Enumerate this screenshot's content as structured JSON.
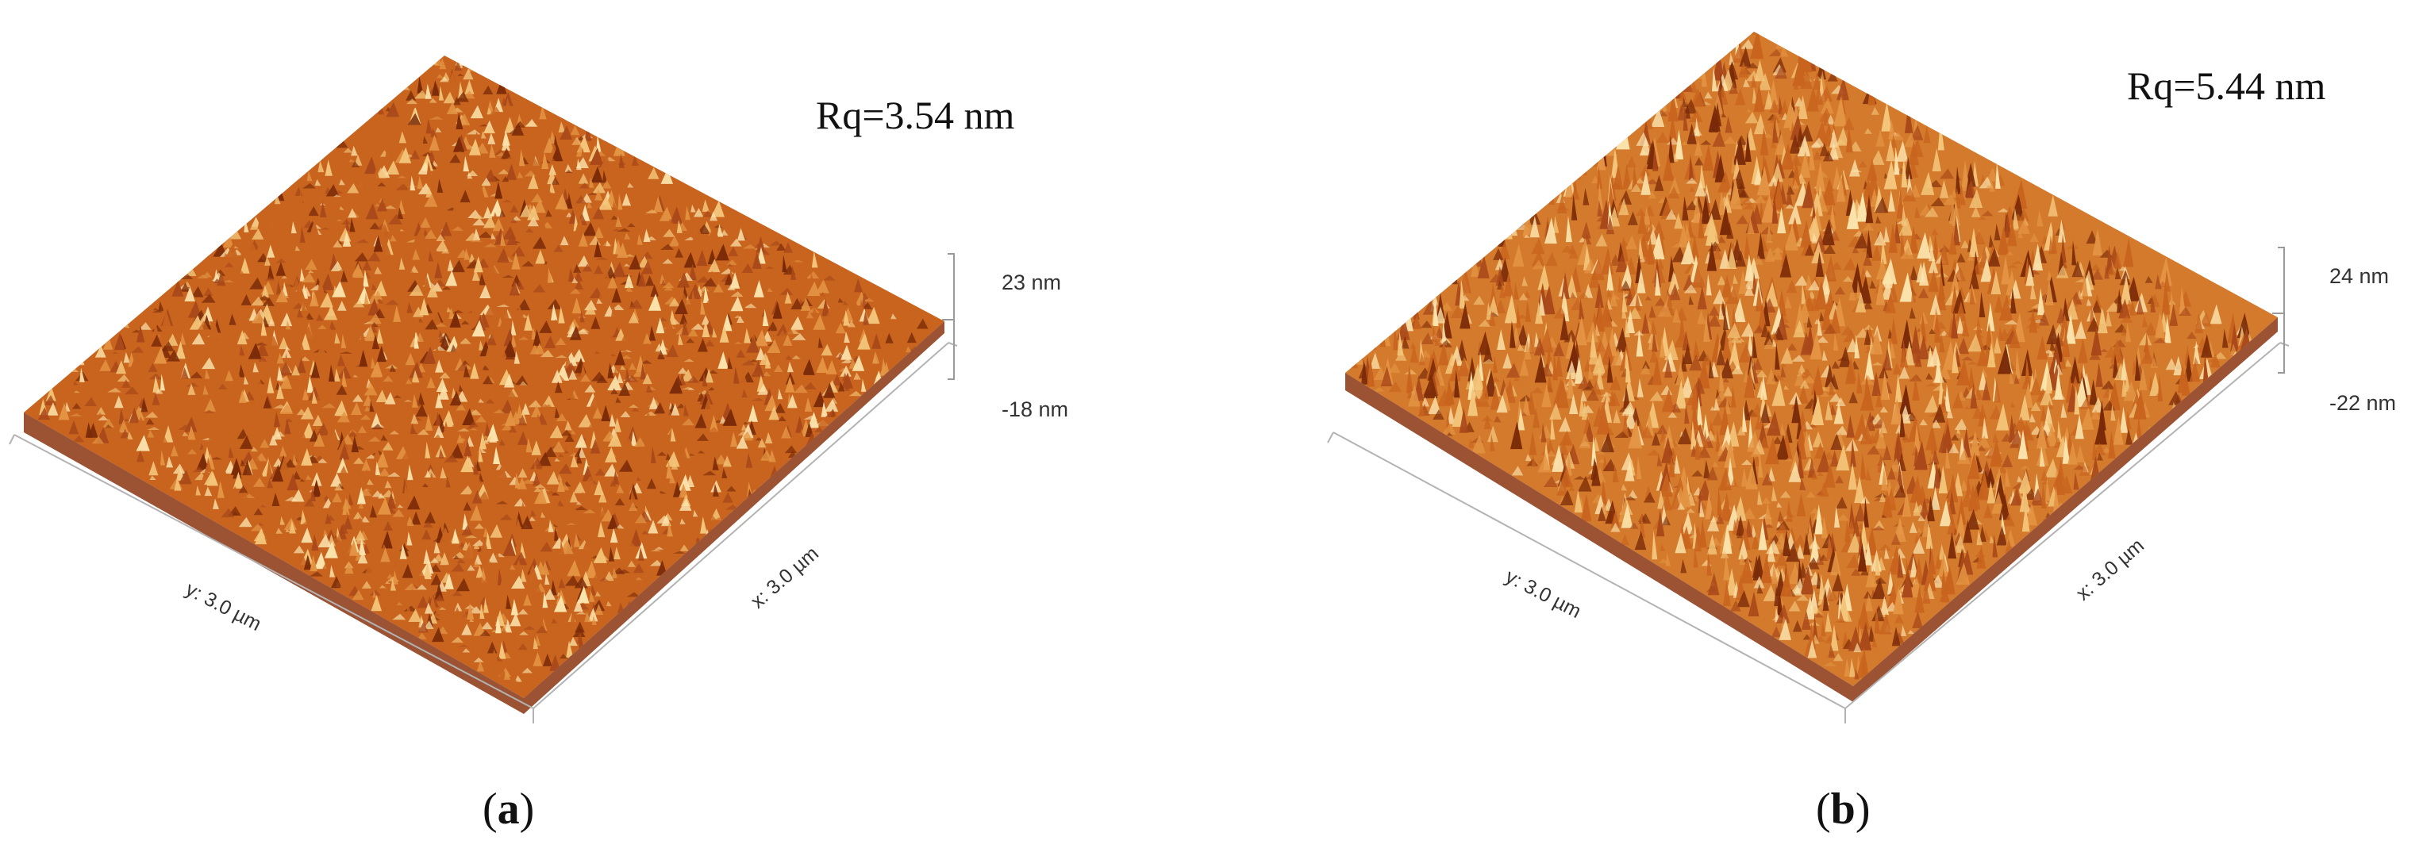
{
  "panels": [
    {
      "id": "a",
      "rq_label": "Rq=3.54 nm",
      "z_max_label": "23 nm",
      "z_min_label": "-18 nm",
      "x_axis_label": "x: 3.0 µm",
      "y_axis_label": "y: 3.0 µm",
      "panel_letter": "a",
      "seed": 7,
      "roughness": 0.65
    },
    {
      "id": "b",
      "rq_label": "Rq=5.44 nm",
      "z_max_label": "24 nm",
      "z_min_label": "-22 nm",
      "x_axis_label": "x: 3.0 µm",
      "y_axis_label": "y: 3.0 µm",
      "panel_letter": "b",
      "seed": 31,
      "roughness": 1.0
    }
  ],
  "colors": {
    "dark": "#7a2a08",
    "mid": "#c8641e",
    "light": "#f3c57a",
    "highlight": "#fbe3ac"
  }
}
